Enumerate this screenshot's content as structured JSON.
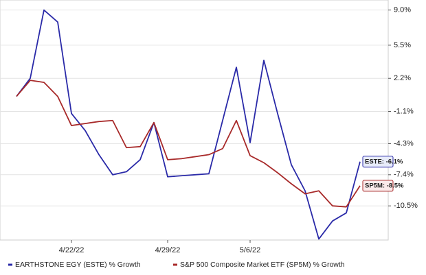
{
  "chart_data": {
    "type": "line",
    "x": [
      0,
      1,
      2,
      3,
      4,
      5,
      6,
      7,
      8,
      9,
      10,
      11,
      12,
      13,
      14,
      15,
      16,
      17,
      18,
      19,
      20,
      21,
      22,
      23,
      24,
      25
    ],
    "xlim": [
      -1.2,
      27.05
    ],
    "xticks": [
      {
        "value": 4,
        "label": "4/22/22"
      },
      {
        "value": 11,
        "label": "4/29/22"
      },
      {
        "value": 17,
        "label": "5/6/22"
      }
    ],
    "ylim": [
      -13.9,
      10
    ],
    "yticks": [
      {
        "value": 9.0,
        "label": "9.0%"
      },
      {
        "value": 5.5,
        "label": "5.5%"
      },
      {
        "value": 2.2,
        "label": "2.2%"
      },
      {
        "value": -1.1,
        "label": "-1.1%"
      },
      {
        "value": -4.3,
        "label": "-4.3%"
      },
      {
        "value": -7.4,
        "label": "-7.4%"
      },
      {
        "value": -10.5,
        "label": "-10.5%"
      }
    ],
    "grid": true,
    "series": [
      {
        "name": "EARTHSTONE EGY (ESTE) % Growth",
        "color": "#2a2aa8",
        "label_fill": "#e8ecfa",
        "last_label": "ESTE: -6.1%",
        "values": [
          0.4,
          2.2,
          9.0,
          7.8,
          -1.3,
          -3.0,
          -5.4,
          -7.4,
          -7.1,
          -5.9,
          -2.2,
          -7.6,
          -7.5,
          -7.4,
          -7.3,
          -2.0,
          3.3,
          -4.2,
          4.0,
          -1.3,
          -6.4,
          -9.0,
          -13.8,
          -12.0,
          -11.2,
          -6.1
        ]
      },
      {
        "name": "S&P 500 Composite Market ETF (SP5M) % Growth",
        "color": "#a82a2a",
        "label_fill": "#faeaea",
        "last_label": "SP5M: -8.5%",
        "values": [
          0.4,
          2.0,
          1.8,
          0.4,
          -2.5,
          -2.3,
          -2.1,
          -2.0,
          -4.7,
          -4.6,
          -2.2,
          -5.9,
          -5.8,
          -5.6,
          -5.4,
          -4.8,
          -2.0,
          -5.5,
          -6.2,
          -7.2,
          -8.3,
          -9.3,
          -9.0,
          -10.5,
          -10.6,
          -8.5
        ]
      }
    ]
  }
}
